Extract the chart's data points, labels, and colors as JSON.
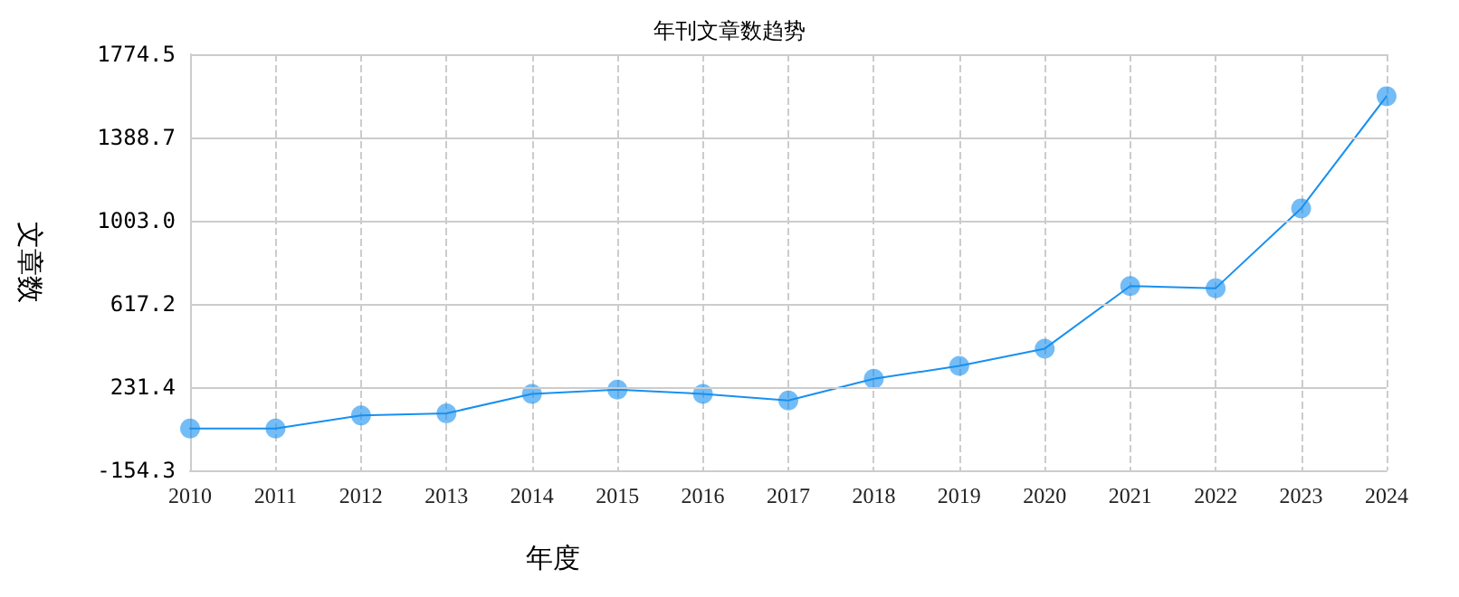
{
  "chart_data": {
    "type": "line",
    "title": "年刊文章数趋势",
    "xlabel": "年度",
    "ylabel": "文章数",
    "categories": [
      "2010",
      "2011",
      "2012",
      "2013",
      "2014",
      "2015",
      "2016",
      "2017",
      "2018",
      "2019",
      "2020",
      "2021",
      "2022",
      "2023",
      "2024"
    ],
    "series": [
      {
        "color": "#1890f0",
        "values": [
          40,
          40,
          100,
          110,
          200,
          220,
          200,
          170,
          270,
          330,
          410,
          700,
          690,
          1060,
          1580
        ]
      }
    ],
    "ylim": [
      -154.3,
      1774.5
    ],
    "yticks": [
      -154.3,
      231.4,
      617.2,
      {
        "value": 1003,
        "label": "1003.0"
      },
      1388.7,
      1774.5
    ],
    "grid": true,
    "marker": "circle",
    "line_style": "solid"
  }
}
